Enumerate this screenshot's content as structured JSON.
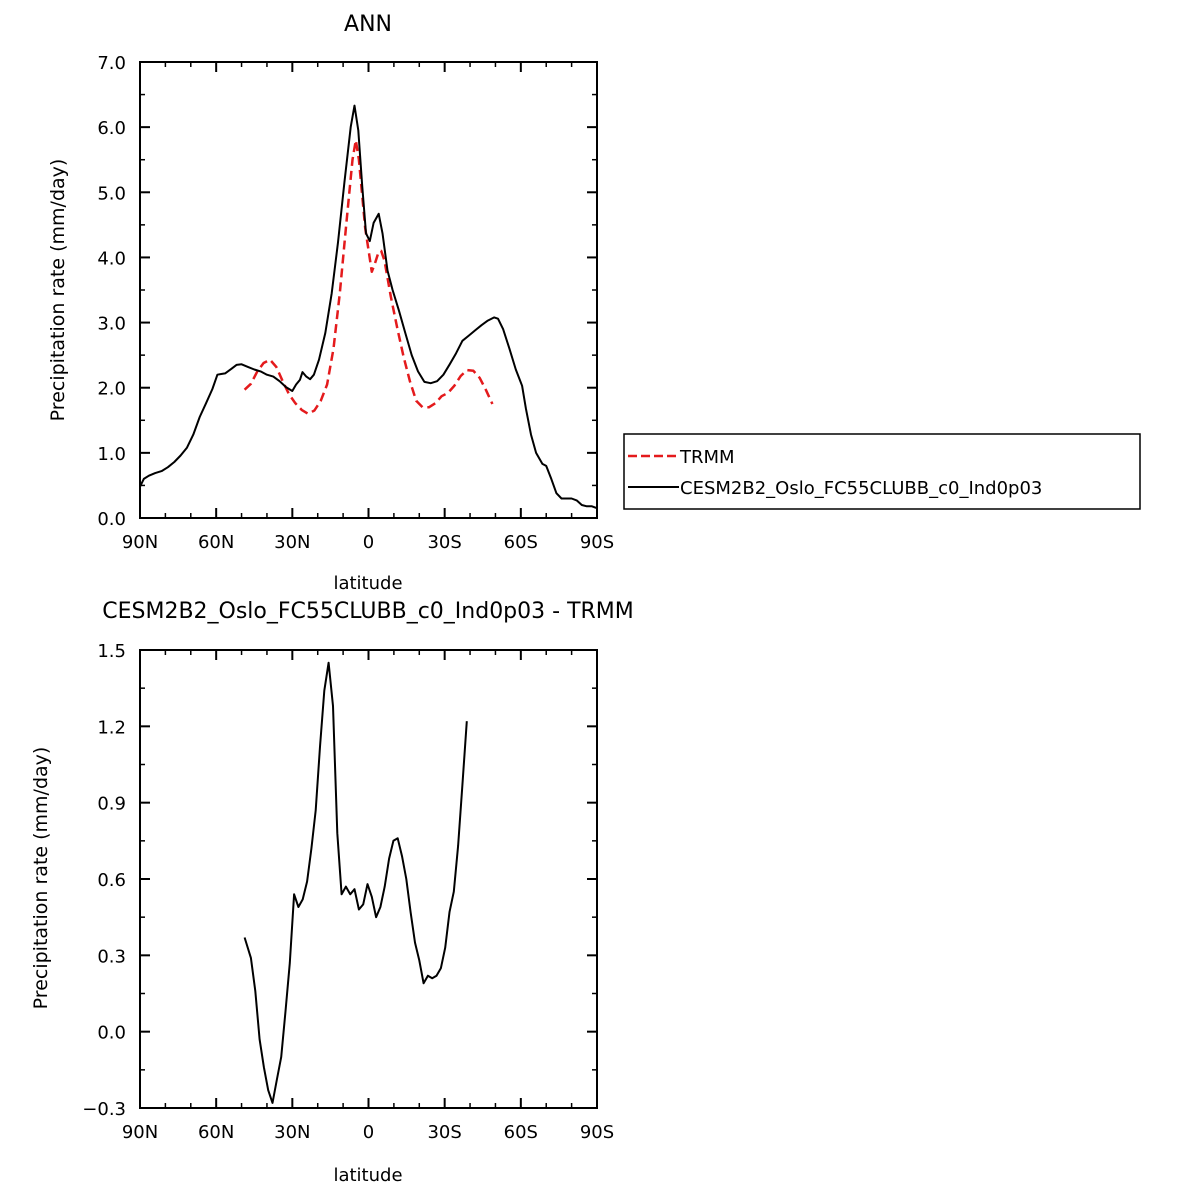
{
  "chart_data": [
    {
      "type": "line",
      "title": "ANN",
      "xlabel": "latitude",
      "ylabel": "Precipitation rate (mm/day)",
      "xlim": [
        90,
        -90
      ],
      "ylim": [
        0,
        7
      ],
      "x_ticks": [
        90,
        60,
        30,
        0,
        -30,
        -60,
        -90
      ],
      "x_tick_labels": [
        "90N",
        "60N",
        "30N",
        "0",
        "30S",
        "60S",
        "90S"
      ],
      "y_ticks": [
        0,
        1,
        2,
        3,
        4,
        5,
        6,
        7
      ],
      "y_tick_labels": [
        "0.0",
        "1.0",
        "2.0",
        "3.0",
        "4.0",
        "5.0",
        "6.0",
        "7.0"
      ],
      "legend_position": "right-outside",
      "series": [
        {
          "name": "TRMM",
          "color": "#e41a1c",
          "dash": "dashed",
          "points": [
            [
              48.8,
              1.97
            ],
            [
              46.3,
              2.06
            ],
            [
              43.8,
              2.25
            ],
            [
              41.3,
              2.38
            ],
            [
              38.8,
              2.43
            ],
            [
              36.3,
              2.32
            ],
            [
              33.8,
              2.1
            ],
            [
              31.3,
              1.9
            ],
            [
              28.8,
              1.76
            ],
            [
              26.3,
              1.66
            ],
            [
              23.8,
              1.6
            ],
            [
              21.3,
              1.65
            ],
            [
              18.8,
              1.8
            ],
            [
              16.3,
              2.05
            ],
            [
              13.8,
              2.6
            ],
            [
              11.3,
              3.45
            ],
            [
              8.8,
              4.5
            ],
            [
              6.3,
              5.5
            ],
            [
              5,
              5.8
            ],
            [
              3.8,
              5.5
            ],
            [
              1.3,
              4.45
            ],
            [
              -1.3,
              3.78
            ],
            [
              -2.5,
              3.9
            ],
            [
              -3.8,
              4.06
            ],
            [
              -5,
              4.1
            ],
            [
              -6.3,
              3.95
            ],
            [
              -8.8,
              3.4
            ],
            [
              -11.3,
              2.92
            ],
            [
              -13.8,
              2.48
            ],
            [
              -16.3,
              2.1
            ],
            [
              -18.8,
              1.8
            ],
            [
              -21.3,
              1.7
            ],
            [
              -23.8,
              1.7
            ],
            [
              -26.3,
              1.76
            ],
            [
              -28.8,
              1.87
            ],
            [
              -31.3,
              1.92
            ],
            [
              -33.8,
              2.03
            ],
            [
              -36.3,
              2.18
            ],
            [
              -38.8,
              2.27
            ],
            [
              -41.3,
              2.26
            ],
            [
              -43.8,
              2.15
            ],
            [
              -46.3,
              1.96
            ],
            [
              -48.8,
              1.75
            ]
          ]
        },
        {
          "name": "CESM2B2_Oslo_FC55CLUBB_c0_Ind0p03",
          "color": "#000000",
          "dash": "solid",
          "points": [
            [
              90,
              0.48
            ],
            [
              88.5,
              0.6
            ],
            [
              86.5,
              0.65
            ],
            [
              84,
              0.69
            ],
            [
              81.5,
              0.72
            ],
            [
              79,
              0.78
            ],
            [
              76.5,
              0.86
            ],
            [
              74,
              0.96
            ],
            [
              71.5,
              1.08
            ],
            [
              69,
              1.28
            ],
            [
              66.5,
              1.55
            ],
            [
              64,
              1.76
            ],
            [
              61.5,
              1.98
            ],
            [
              59.5,
              2.2
            ],
            [
              58,
              2.21
            ],
            [
              56.5,
              2.22
            ],
            [
              54,
              2.29
            ],
            [
              52,
              2.35
            ],
            [
              50,
              2.36
            ],
            [
              47.5,
              2.32
            ],
            [
              45,
              2.28
            ],
            [
              42.5,
              2.25
            ],
            [
              40,
              2.2
            ],
            [
              37.5,
              2.17
            ],
            [
              35,
              2.1
            ],
            [
              32.5,
              2.01
            ],
            [
              30,
              1.95
            ],
            [
              28.5,
              2.05
            ],
            [
              27,
              2.12
            ],
            [
              26,
              2.24
            ],
            [
              24.5,
              2.17
            ],
            [
              23,
              2.13
            ],
            [
              21.5,
              2.2
            ],
            [
              19.5,
              2.43
            ],
            [
              17,
              2.84
            ],
            [
              14.5,
              3.45
            ],
            [
              12,
              4.23
            ],
            [
              9.5,
              5.15
            ],
            [
              7,
              6
            ],
            [
              5.5,
              6.33
            ],
            [
              4,
              5.95
            ],
            [
              2.5,
              5.1
            ],
            [
              1,
              4.37
            ],
            [
              -0.5,
              4.25
            ],
            [
              -2,
              4.53
            ],
            [
              -4,
              4.67
            ],
            [
              -5.5,
              4.37
            ],
            [
              -7.5,
              3.8
            ],
            [
              -9.5,
              3.5
            ],
            [
              -12,
              3.18
            ],
            [
              -14.5,
              2.84
            ],
            [
              -17,
              2.5
            ],
            [
              -19.5,
              2.25
            ],
            [
              -22,
              2.09
            ],
            [
              -24.5,
              2.07
            ],
            [
              -27,
              2.1
            ],
            [
              -29.5,
              2.2
            ],
            [
              -32,
              2.36
            ],
            [
              -34.5,
              2.53
            ],
            [
              -37,
              2.72
            ],
            [
              -39.5,
              2.8
            ],
            [
              -42,
              2.88
            ],
            [
              -44.5,
              2.96
            ],
            [
              -47,
              3.03
            ],
            [
              -49.5,
              3.08
            ],
            [
              -51,
              3.06
            ],
            [
              -53,
              2.9
            ],
            [
              -55.5,
              2.6
            ],
            [
              -58,
              2.28
            ],
            [
              -60.5,
              2.03
            ],
            [
              -62,
              1.68
            ],
            [
              -64,
              1.28
            ],
            [
              -66,
              1
            ],
            [
              -68.5,
              0.83
            ],
            [
              -70,
              0.8
            ],
            [
              -72,
              0.6
            ],
            [
              -74,
              0.38
            ],
            [
              -76,
              0.3
            ],
            [
              -78,
              0.3
            ],
            [
              -80,
              0.3
            ],
            [
              -82,
              0.27
            ],
            [
              -84,
              0.2
            ],
            [
              -86,
              0.18
            ],
            [
              -88,
              0.18
            ],
            [
              -90,
              0.15
            ]
          ]
        }
      ]
    },
    {
      "type": "line",
      "title": "CESM2B2_Oslo_FC55CLUBB_c0_Ind0p03 - TRMM",
      "xlabel": "latitude",
      "ylabel": "Precipitation rate (mm/day)",
      "xlim": [
        90,
        -90
      ],
      "ylim": [
        -0.3,
        1.5
      ],
      "x_ticks": [
        90,
        60,
        30,
        0,
        -30,
        -60,
        -90
      ],
      "x_tick_labels": [
        "90N",
        "60N",
        "30N",
        "0",
        "30S",
        "60S",
        "90S"
      ],
      "y_ticks": [
        -0.3,
        0,
        0.3,
        0.6,
        0.9,
        1.2,
        1.5
      ],
      "y_tick_labels": [
        "−0.3",
        "0.0",
        "0.3",
        "0.6",
        "0.9",
        "1.2",
        "1.5"
      ],
      "series": [
        {
          "color": "#000000",
          "dash": "solid",
          "points": [
            [
              48.8,
              0.37
            ],
            [
              46.3,
              0.29
            ],
            [
              44.6,
              0.16
            ],
            [
              42.9,
              -0.03
            ],
            [
              41.2,
              -0.14
            ],
            [
              39.5,
              -0.23
            ],
            [
              37.8,
              -0.28
            ],
            [
              36.1,
              -0.19
            ],
            [
              34.4,
              -0.1
            ],
            [
              32.7,
              0.08
            ],
            [
              31,
              0.27
            ],
            [
              29.3,
              0.54
            ],
            [
              27.6,
              0.49
            ],
            [
              25.9,
              0.52
            ],
            [
              24.2,
              0.59
            ],
            [
              22.5,
              0.72
            ],
            [
              20.8,
              0.87
            ],
            [
              19.1,
              1.12
            ],
            [
              17.4,
              1.34
            ],
            [
              15.7,
              1.45
            ],
            [
              14,
              1.28
            ],
            [
              12.3,
              0.78
            ],
            [
              10.6,
              0.54
            ],
            [
              8.9,
              0.57
            ],
            [
              7.2,
              0.54
            ],
            [
              5.5,
              0.56
            ],
            [
              3.8,
              0.48
            ],
            [
              2.1,
              0.5
            ],
            [
              0.4,
              0.58
            ],
            [
              -1.3,
              0.53
            ],
            [
              -3,
              0.45
            ],
            [
              -4.7,
              0.49
            ],
            [
              -6.4,
              0.57
            ],
            [
              -8.1,
              0.68
            ],
            [
              -9.8,
              0.75
            ],
            [
              -11.5,
              0.76
            ],
            [
              -13.2,
              0.69
            ],
            [
              -14.9,
              0.6
            ],
            [
              -16.6,
              0.47
            ],
            [
              -18.3,
              0.35
            ],
            [
              -20,
              0.28
            ],
            [
              -21.7,
              0.19
            ],
            [
              -23.4,
              0.22
            ],
            [
              -25.1,
              0.21
            ],
            [
              -26.8,
              0.22
            ],
            [
              -28.5,
              0.25
            ],
            [
              -30.2,
              0.33
            ],
            [
              -31.9,
              0.47
            ],
            [
              -33.6,
              0.55
            ],
            [
              -35.3,
              0.73
            ],
            [
              -37,
              0.97
            ],
            [
              -38.7,
              1.22
            ]
          ]
        }
      ]
    }
  ]
}
